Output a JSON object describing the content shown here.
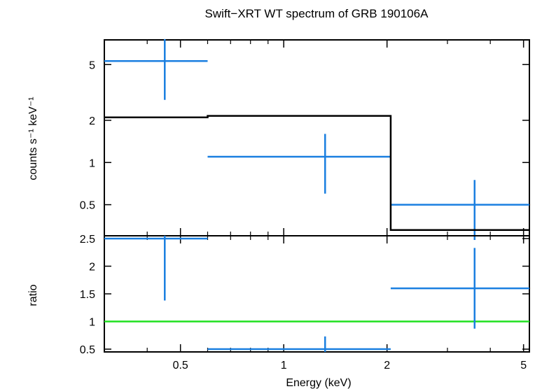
{
  "chart_data": [
    {
      "panel": "spectrum",
      "type": "scatter",
      "title": "Swift−XRT WT spectrum of GRB 190106A",
      "ylabel": "counts s⁻¹ keV⁻¹",
      "yscale": "log",
      "ylim": [
        0.3,
        7.5
      ],
      "xscale": "log",
      "xlim": [
        0.3,
        5.2
      ],
      "yticks": [
        {
          "v": 0.5,
          "label": "0.5"
        },
        {
          "v": 1,
          "label": "1"
        },
        {
          "v": 2,
          "label": "2"
        },
        {
          "v": 5,
          "label": "5"
        }
      ],
      "series": [
        {
          "kind": "data",
          "color": "#1a7fe0",
          "points": [
            {
              "x": 0.45,
              "xlo": 0.3,
              "xhi": 0.6,
              "y": 5.3,
              "ylo": 2.8,
              "yhi": 7.6
            },
            {
              "x": 1.32,
              "xlo": 0.6,
              "xhi": 2.05,
              "y": 1.1,
              "ylo": 0.6,
              "yhi": 1.6
            },
            {
              "x": 3.6,
              "xlo": 2.05,
              "xhi": 5.2,
              "y": 0.5,
              "ylo": 0.28,
              "yhi": 0.75
            }
          ]
        },
        {
          "kind": "model",
          "color": "#000000",
          "steps": [
            {
              "xlo": 0.3,
              "xhi": 0.6,
              "y": 2.1
            },
            {
              "xlo": 0.6,
              "xhi": 2.05,
              "y": 2.15
            },
            {
              "xlo": 2.05,
              "xhi": 5.2,
              "y": 0.33
            }
          ]
        }
      ]
    },
    {
      "panel": "ratio",
      "type": "scatter",
      "xlabel": "Energy (keV)",
      "ylabel": "ratio",
      "yscale": "linear",
      "ylim": [
        0.45,
        2.55
      ],
      "xscale": "log",
      "xlim": [
        0.3,
        5.2
      ],
      "xticks": [
        {
          "v": 0.5,
          "label": "0.5"
        },
        {
          "v": 1,
          "label": "1"
        },
        {
          "v": 2,
          "label": "2"
        },
        {
          "v": 5,
          "label": "5"
        }
      ],
      "yticks": [
        {
          "v": 0.5,
          "label": "0.5"
        },
        {
          "v": 1,
          "label": "1"
        },
        {
          "v": 1.5,
          "label": "1.5"
        },
        {
          "v": 2,
          "label": "2"
        },
        {
          "v": 2.5,
          "label": "2.5"
        }
      ],
      "reference_line": {
        "y": 1,
        "color": "#1fe01f"
      },
      "series": [
        {
          "kind": "data",
          "color": "#1a7fe0",
          "points": [
            {
              "x": 0.45,
              "xlo": 0.3,
              "xhi": 0.6,
              "y": 2.5,
              "ylo": 1.38,
              "yhi": 2.55
            },
            {
              "x": 1.32,
              "xlo": 0.6,
              "xhi": 2.05,
              "y": 0.5,
              "ylo": 0.45,
              "yhi": 0.73
            },
            {
              "x": 3.6,
              "xlo": 2.05,
              "xhi": 5.2,
              "y": 1.6,
              "ylo": 0.87,
              "yhi": 2.33
            }
          ]
        }
      ]
    }
  ]
}
